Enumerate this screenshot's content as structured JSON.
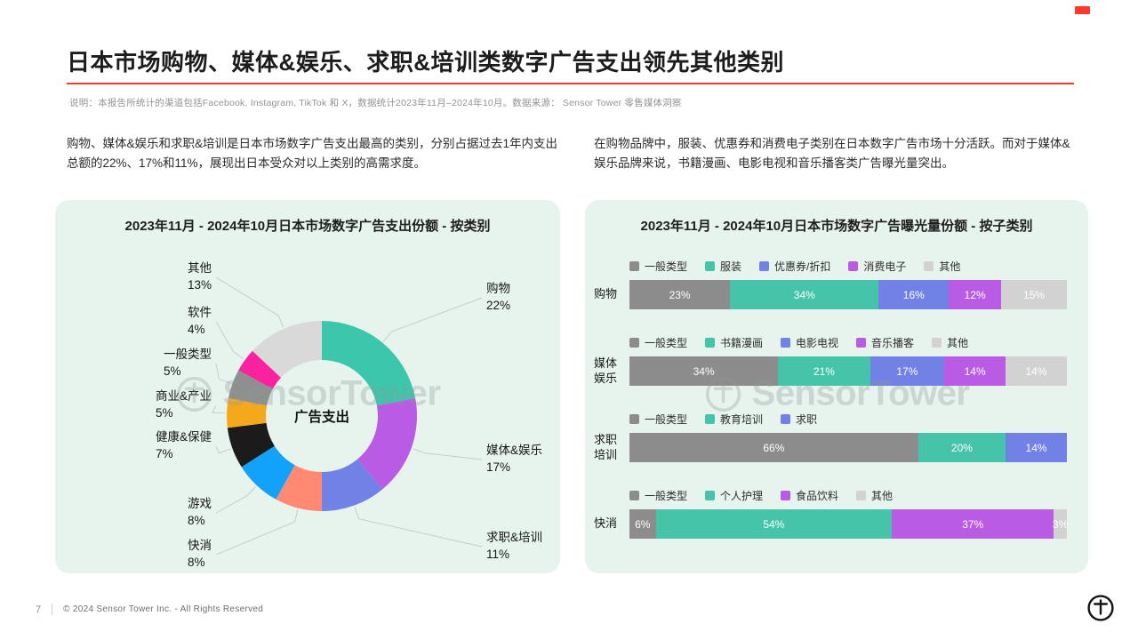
{
  "page": {
    "title": "日本市场购物、媒体&娱乐、求职&培训类数字广告支出领先其他类别",
    "note": "说明：本报告所统计的渠道包括Facebook, Instagram, TikTok 和 X，数据统计2023年11月–2024年10月。数据来源： Sensor Tower 零售媒体洞察",
    "para_left": "购物、媒体&娱乐和求职&培训是日本市场数字广告支出最高的类别，分别占据过去1年内支出总额的22%、17%和11%，展现出日本受众对以上类别的高需求度。",
    "para_right": "在购物品牌中，服装、优惠券和消费电子类别在日本数字广告市场十分活跃。而对于媒体&娱乐品牌来说，书籍漫画、电影电视和音乐播客类广告曝光量突出。",
    "watermark": "SensorTower",
    "accent_red": "#f93a2c",
    "card_bg": "#e7f4ee",
    "footer": {
      "page_number": "7",
      "copyright": "© 2024 Sensor Tower Inc. - All Rights Reserved"
    }
  },
  "chart_data": [
    {
      "type": "pie",
      "donut": true,
      "title": "2023年11月 - 2024年10月日本市场数字广告支出份额 - 按类别",
      "center_label": "广告支出",
      "start_angle_deg": -90,
      "direction": "clockwise",
      "unit": "%",
      "segments": [
        {
          "label": "购物",
          "value": 22,
          "color": "#3cc7ac",
          "side": "right"
        },
        {
          "label": "媒体&娱乐",
          "value": 17,
          "color": "#b95be5",
          "side": "right"
        },
        {
          "label": "求职&培训",
          "value": 11,
          "color": "#7181e6",
          "side": "right"
        },
        {
          "label": "快消",
          "value": 8,
          "color": "#ff8972",
          "side": "left"
        },
        {
          "label": "游戏",
          "value": 8,
          "color": "#12a1fb",
          "side": "left"
        },
        {
          "label": "健康&保健",
          "value": 7,
          "color": "#1b1b1b",
          "side": "left"
        },
        {
          "label": "商业&产业",
          "value": 5,
          "color": "#f6a81c",
          "side": "left"
        },
        {
          "label": "一般类型",
          "value": 5,
          "color": "#8f8f8f",
          "side": "left"
        },
        {
          "label": "软件",
          "value": 4,
          "color": "#fb22a0",
          "side": "left"
        },
        {
          "label": "其他",
          "value": 13,
          "color": "#d9d9d9",
          "side": "left"
        }
      ]
    },
    {
      "type": "bar",
      "stacked": true,
      "orientation": "horizontal",
      "title": "2023年11月 - 2024年10月日本市场数字广告曝光量份额 - 按子类别",
      "unit": "%",
      "xlim": [
        0,
        100
      ],
      "rows": [
        {
          "label": "购物",
          "segments": [
            {
              "name": "一般类型",
              "value": 23,
              "color": "#8c8c8c"
            },
            {
              "name": "服装",
              "value": 34,
              "color": "#45c4a9"
            },
            {
              "name": "优惠券/折扣",
              "value": 16,
              "color": "#7181e6"
            },
            {
              "name": "消费电子",
              "value": 12,
              "color": "#b95be5"
            },
            {
              "name": "其他",
              "value": 15,
              "color": "#d2d2d2"
            }
          ]
        },
        {
          "label": "媒体娱乐",
          "segments": [
            {
              "name": "一般类型",
              "value": 34,
              "color": "#8c8c8c"
            },
            {
              "name": "书籍漫画",
              "value": 21,
              "color": "#45c4a9"
            },
            {
              "name": "电影电视",
              "value": 17,
              "color": "#7181e6"
            },
            {
              "name": "音乐播客",
              "value": 14,
              "color": "#b95be5"
            },
            {
              "name": "其他",
              "value": 14,
              "color": "#d2d2d2"
            }
          ]
        },
        {
          "label": "求职培训",
          "segments": [
            {
              "name": "一般类型",
              "value": 66,
              "color": "#8c8c8c"
            },
            {
              "name": "教育培训",
              "value": 20,
              "color": "#45c4a9"
            },
            {
              "name": "求职",
              "value": 14,
              "color": "#7181e6"
            }
          ]
        },
        {
          "label": "快消",
          "segments": [
            {
              "name": "一般类型",
              "value": 6,
              "color": "#8c8c8c"
            },
            {
              "name": "个人护理",
              "value": 54,
              "color": "#45c4a9"
            },
            {
              "name": "食品饮料",
              "value": 37,
              "color": "#b95be5"
            },
            {
              "name": "其他",
              "value": 3,
              "color": "#d2d2d2"
            }
          ]
        }
      ]
    }
  ]
}
